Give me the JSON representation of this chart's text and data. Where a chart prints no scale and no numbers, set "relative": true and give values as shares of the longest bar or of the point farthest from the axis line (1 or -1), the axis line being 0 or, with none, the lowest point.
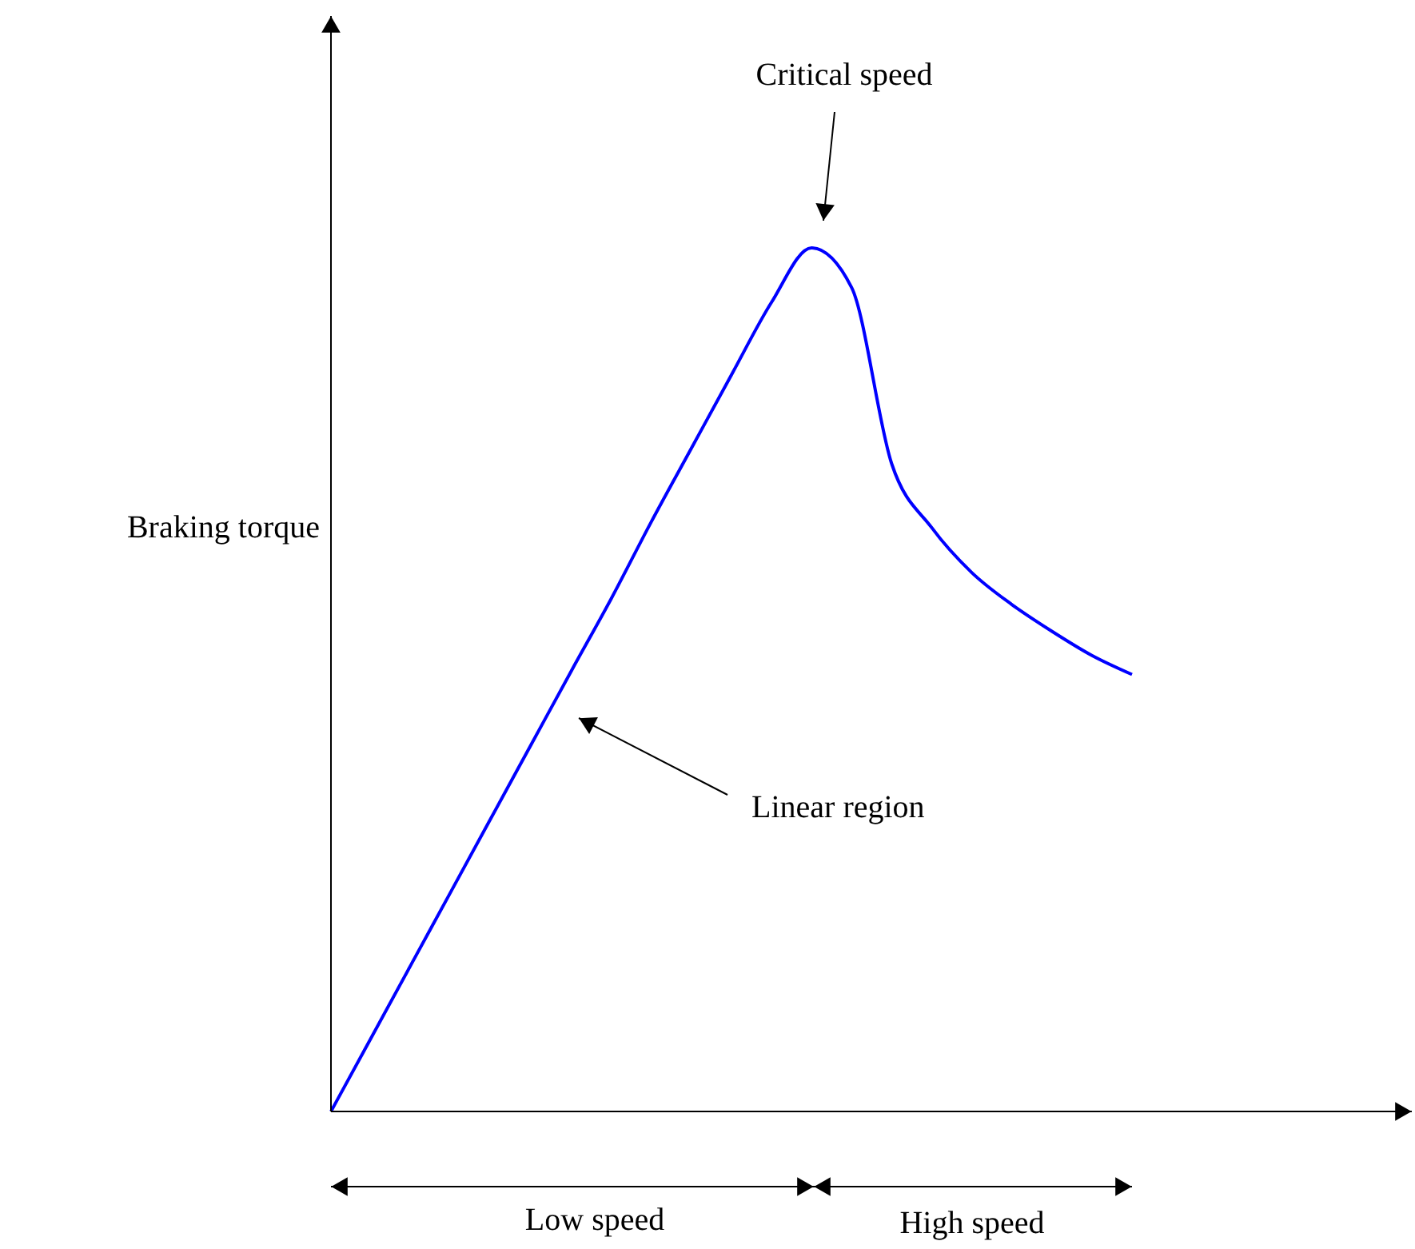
{
  "chart_data": {
    "type": "line",
    "relative": true,
    "ylabel": "Braking torque",
    "categories": [
      null,
      null,
      null,
      null,
      null,
      null,
      null,
      null,
      null,
      null,
      null,
      null,
      null,
      null,
      null,
      null,
      null,
      null,
      null,
      null,
      null
    ],
    "series": [
      {
        "color": "#0000ff",
        "values": [
          0,
          0.085,
          0.17,
          0.255,
          0.34,
          0.425,
          0.51,
          0.594,
          0.683,
          0.768,
          0.853,
          0.937,
          1.0,
          0.954,
          0.75,
          0.676,
          0.624,
          0.587,
          0.556,
          0.528,
          0.506
        ]
      }
    ],
    "annotations": [
      "Critical speed",
      "Linear region",
      "Low speed",
      "High speed"
    ]
  }
}
